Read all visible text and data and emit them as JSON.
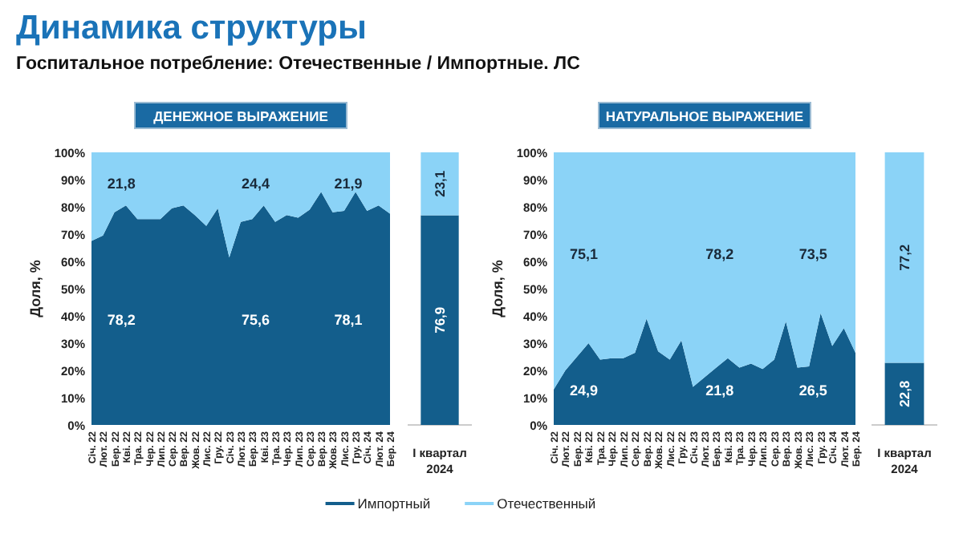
{
  "chart_data": [
    {
      "type": "other",
      "title": "Динамика структуры",
      "subtitle": "Госпитальное потребление: Отечественные / Импортные. ЛС"
    },
    {
      "type": "area",
      "title": "ДЕНЕЖНОЕ ВЫРАЖЕНИЕ",
      "ylabel": "Доля, %",
      "stacked": true,
      "legend": "bottom",
      "categories": [
        "Січ. 22",
        "Лют. 22",
        "Бер. 22",
        "Кві. 22",
        "Тра. 22",
        "Чер. 22",
        "Лип. 22",
        "Сер. 22",
        "Вер. 22",
        "Жов. 22",
        "Лис. 22",
        "Гру. 22",
        "Січ. 23",
        "Лют. 23",
        "Бер. 23",
        "Кві. 23",
        "Тра. 23",
        "Чер. 23",
        "Лип. 23",
        "Сер. 23",
        "Вер. 23",
        "Жов. 23",
        "Лис. 23",
        "Гру. 23",
        "Січ. 24",
        "Лют. 24",
        "Бер. 24"
      ],
      "series": [
        {
          "name": "Импортный",
          "color": "#135e8c",
          "values": [
            67.5,
            69.5,
            78,
            80.5,
            75.5,
            75.5,
            75.5,
            79.5,
            80.5,
            77,
            73,
            79.5,
            61.5,
            74.5,
            75.5,
            80.5,
            74.5,
            77,
            76,
            79,
            85.5,
            78,
            78.5,
            85.5,
            78.5,
            80.5,
            77.5
          ]
        },
        {
          "name": "Отечественный",
          "color": "#8bd3f7",
          "values": [
            32.5,
            30.5,
            22,
            19.5,
            24.5,
            24.5,
            24.5,
            20.5,
            19.5,
            23,
            27,
            20.5,
            38.5,
            25.5,
            24.5,
            19.5,
            25.5,
            23,
            24,
            21,
            14.5,
            22,
            21.5,
            14.5,
            21.5,
            19.5,
            22.5
          ]
        }
      ],
      "ylim": [
        0,
        100
      ],
      "yticks": [
        {
          "value": 0,
          "label": "0%"
        },
        {
          "value": 10,
          "label": "10%"
        },
        {
          "value": 20,
          "label": "20%"
        },
        {
          "value": 30,
          "label": "30%"
        },
        {
          "value": 40,
          "label": "40%"
        },
        {
          "value": 50,
          "label": "50%"
        },
        {
          "value": 60,
          "label": "60%"
        },
        {
          "value": 70,
          "label": "70%"
        },
        {
          "value": 80,
          "label": "80%"
        },
        {
          "value": 90,
          "label": "90%"
        },
        {
          "value": 100,
          "label": "100%"
        }
      ],
      "annotations": [
        "21,8",
        "78,2",
        "24,4",
        "75,6",
        "21,9",
        "78,1"
      ]
    },
    {
      "type": "bar",
      "stacked": true,
      "categories": [
        "I квартал 2024"
      ],
      "ylim": [
        0,
        100
      ],
      "tick_labels": false,
      "series": [
        {
          "color": "#135e8c",
          "values": [
            76.9
          ],
          "value_labels": [
            "76,9"
          ]
        },
        {
          "color": "#8bd3f7",
          "values": [
            23.1
          ],
          "value_labels": [
            "23,1"
          ]
        }
      ]
    },
    {
      "type": "area",
      "title": "НАТУРАЛЬНОЕ ВЫРАЖЕНИЕ",
      "ylabel": "Доля, %",
      "stacked": true,
      "categories": [
        "Січ. 22",
        "Лют. 22",
        "Бер. 22",
        "Кві. 22",
        "Тра. 22",
        "Чер. 22",
        "Лип. 22",
        "Сер. 22",
        "Вер. 22",
        "Жов. 22",
        "Лис. 22",
        "Гру. 22",
        "Січ. 23",
        "Лют. 23",
        "Бер. 23",
        "Кві. 23",
        "Тра. 23",
        "Чер. 23",
        "Лип. 23",
        "Сер. 23",
        "Вер. 23",
        "Жов. 23",
        "Лис. 23",
        "Гру. 23",
        "Січ. 24",
        "Лют. 24",
        "Бер. 24"
      ],
      "series": [
        {
          "color": "#135e8c",
          "values": [
            13,
            20,
            25,
            30,
            24,
            24.5,
            24.5,
            26.5,
            39,
            27,
            24,
            31,
            14,
            17.5,
            21,
            24.5,
            21,
            22.5,
            20.5,
            24,
            38,
            21,
            21.5,
            41,
            29,
            35.5,
            26.5
          ]
        },
        {
          "color": "#8bd3f7",
          "values": [
            87,
            80,
            75,
            70,
            76,
            75.5,
            75.5,
            73.5,
            61,
            73,
            76,
            69,
            86,
            82.5,
            79,
            75.5,
            79,
            77.5,
            79.5,
            76,
            62,
            79,
            78.5,
            59,
            71,
            64.5,
            73.5
          ]
        }
      ],
      "ylim": [
        0,
        100
      ],
      "yticks": [
        {
          "value": 0,
          "label": "0%"
        },
        {
          "value": 10,
          "label": "10%"
        },
        {
          "value": 20,
          "label": "20%"
        },
        {
          "value": 30,
          "label": "30%"
        },
        {
          "value": 40,
          "label": "40%"
        },
        {
          "value": 50,
          "label": "50%"
        },
        {
          "value": 60,
          "label": "60%"
        },
        {
          "value": 70,
          "label": "70%"
        },
        {
          "value": 80,
          "label": "80%"
        },
        {
          "value": 90,
          "label": "90%"
        },
        {
          "value": 100,
          "label": "100%"
        }
      ],
      "annotations": [
        "75,1",
        "24,9",
        "78,2",
        "21,8",
        "73,5",
        "26,5"
      ]
    },
    {
      "type": "bar",
      "stacked": true,
      "categories": [
        "I квартал 2024"
      ],
      "ylim": [
        0,
        100
      ],
      "tick_labels": false,
      "series": [
        {
          "color": "#135e8c",
          "values": [
            22.8
          ],
          "value_labels": [
            "22,8"
          ]
        },
        {
          "color": "#8bd3f7",
          "values": [
            77.2
          ],
          "value_labels": [
            "77,2"
          ]
        }
      ]
    }
  ]
}
